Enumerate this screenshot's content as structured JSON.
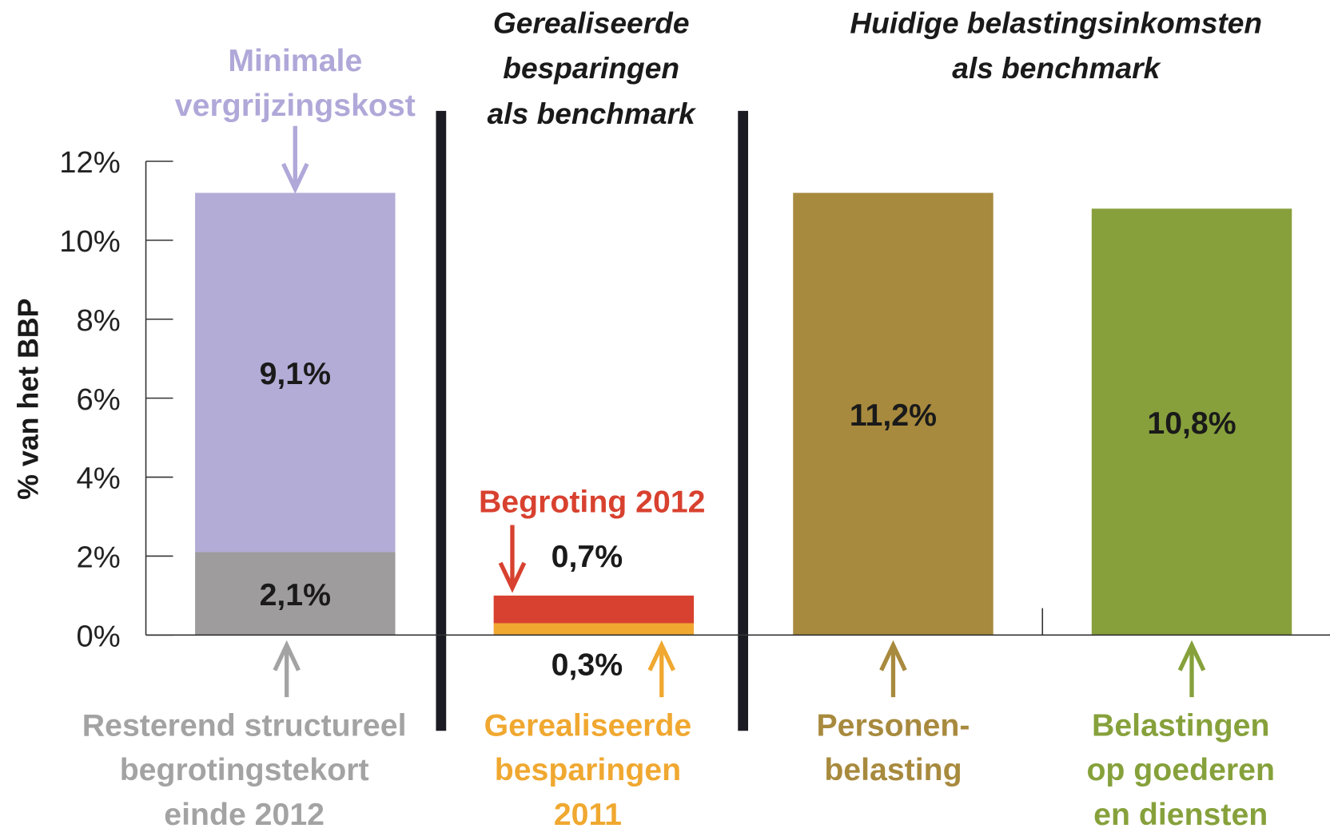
{
  "chart_data": {
    "type": "bar",
    "stacked": true,
    "y_label": "% van het BBP",
    "categories": [
      null,
      null,
      null,
      null
    ],
    "sections": [
      {
        "title": [
          "Gerealiseerde",
          "besparingen",
          "als benchmark"
        ]
      },
      {
        "title": [
          "Huidige belastingsinkomsten",
          "als benchmark"
        ]
      }
    ],
    "series": [
      {
        "name": [
          "Resterend structureel",
          "begrotingstekort",
          "einde 2012"
        ],
        "color": "#9e9c9c",
        "text_color": "#a3a3a3",
        "values": [
          2.1,
          null,
          null,
          null
        ],
        "value_labels": [
          "2,1%",
          null,
          null,
          null
        ]
      },
      {
        "name": [
          "Minimale",
          "vergrijzingskost"
        ],
        "color": "#b3acd6",
        "text_color": "#afa8d8",
        "values": [
          9.1,
          null,
          null,
          null
        ],
        "value_labels": [
          "9,1%",
          null,
          null,
          null
        ]
      },
      {
        "name": [
          "Gerealiseerde",
          "besparingen",
          "2011"
        ],
        "color": "#f0a830",
        "text_color": "#f0a830",
        "values": [
          null,
          0.3,
          null,
          null
        ],
        "value_labels": [
          null,
          "0,3%",
          null,
          null
        ]
      },
      {
        "name": [
          "Begroting 2012"
        ],
        "color": "#d8412f",
        "text_color": "#d8412f",
        "values": [
          null,
          0.7,
          null,
          null
        ],
        "value_labels": [
          null,
          "0,7%",
          null,
          null
        ]
      },
      {
        "name": [
          "Personen-",
          "belasting"
        ],
        "color": "#a88a3e",
        "text_color": "#a88a3e",
        "values": [
          null,
          null,
          11.2,
          null
        ],
        "value_labels": [
          null,
          null,
          "11,2%",
          null
        ]
      },
      {
        "name": [
          "Belastingen",
          "op goederen",
          "en diensten"
        ],
        "color": "#87a03c",
        "text_color": "#86a13b",
        "values": [
          null,
          null,
          null,
          10.8
        ],
        "value_labels": [
          null,
          null,
          null,
          "10,8%"
        ]
      }
    ],
    "ylim": [
      0,
      12
    ],
    "yticks": [
      {
        "value": 0,
        "label": "0%"
      },
      {
        "value": 2,
        "label": "2%"
      },
      {
        "value": 4,
        "label": "4%"
      },
      {
        "value": 6,
        "label": "6%"
      },
      {
        "value": 8,
        "label": "8%"
      },
      {
        "value": 10,
        "label": "10%"
      },
      {
        "value": 12,
        "label": "12%"
      }
    ]
  }
}
